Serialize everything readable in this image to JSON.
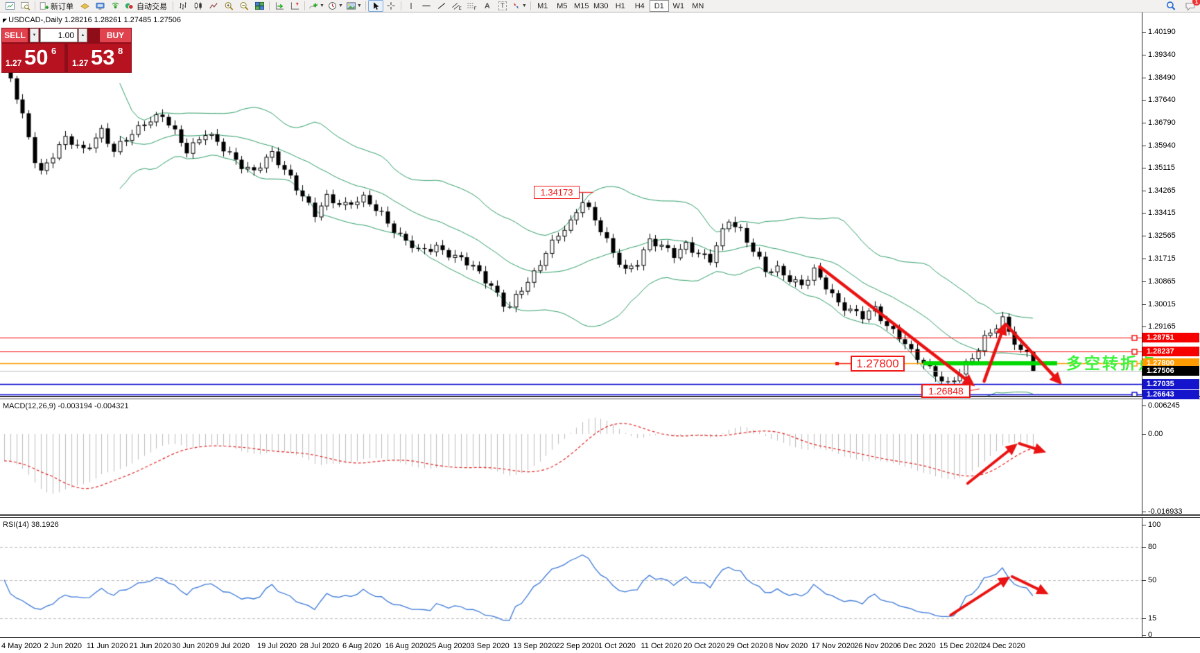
{
  "toolbar": {
    "new_order_label": "新订单",
    "autotrading_label": "自动交易",
    "timeframes": [
      "M1",
      "M5",
      "M15",
      "M30",
      "H1",
      "H4",
      "D1",
      "W1",
      "MN"
    ],
    "active_timeframe": "D1",
    "notification_badge": "1"
  },
  "symbol_line": "USDCAD-,Daily  1.28216 1.28261 1.27485 1.27506",
  "one_click": {
    "sell_label": "SELL",
    "buy_label": "BUY",
    "volume": "1.00",
    "bid": {
      "small": "1.27",
      "big": "50",
      "sup": "6"
    },
    "ask": {
      "small": "1.27",
      "big": "53",
      "sup": "8"
    }
  },
  "chart_data": {
    "type": "candlestick",
    "symbol": "USDCAD",
    "timeframe": "Daily",
    "current_bar": {
      "open": 1.28216,
      "high": 1.28261,
      "low": 1.27485,
      "close": 1.27506
    },
    "bars_total": 170,
    "ylim": [
      1.263,
      1.4045
    ],
    "y_ticks": [
      "1.40190",
      "1.39340",
      "1.38490",
      "1.37640",
      "1.36790",
      "1.35940",
      "1.35115",
      "1.34265",
      "1.33415",
      "1.32565",
      "1.31715",
      "1.30865",
      "1.30015",
      "1.29165"
    ],
    "x_labels": [
      "4 May 2020",
      "2 Jun 2020",
      "11 Jun 2020",
      "21 Jun 2020",
      "30 Jun 2020",
      "9 Jul 2020",
      "19 Jul 2020",
      "28 Jul 2020",
      "6 Aug 2020",
      "16 Aug 2020",
      "25 Aug 2020",
      "3 Sep 2020",
      "13 Sep 2020",
      "22 Sep 2020",
      "1 Oct 2020",
      "11 Oct 2020",
      "20 Oct 2020",
      "29 Oct 2020",
      "8 Nov 2020",
      "17 Nov 2020",
      "26 Nov 2020",
      "6 Dec 2020",
      "15 Dec 2020",
      "24 Dec 2020"
    ],
    "price_levels": [
      {
        "price": 1.28751,
        "label": "1.28751",
        "color": "#f60000",
        "badge_bg": "#f60000",
        "lw": 1,
        "marker": true
      },
      {
        "price": 1.28237,
        "label": "1.28237",
        "color": "#f60000",
        "badge_bg": "#f60000",
        "lw": 1,
        "marker": true
      },
      {
        "price": 1.278,
        "label": "1.27800",
        "color": "#ff9b00",
        "badge_bg": "#ff9b00",
        "lw": 1.6,
        "marker": true
      },
      {
        "price": 1.27506,
        "label": "1.27506",
        "color": "#c0c0c0",
        "badge_bg": "#000000",
        "lw": 1,
        "marker": false
      },
      {
        "price": 1.27035,
        "label": "1.27035",
        "color": "#0000cd",
        "badge_bg": "#1414cd",
        "lw": 1.6,
        "marker": false
      },
      {
        "price": 1.26643,
        "label": "1.26643",
        "color": "#0000cd",
        "badge_bg": "#1414cd",
        "lw": 1.6,
        "marker": true
      }
    ],
    "bollinger": {
      "period": 20,
      "deviation": 2,
      "color": "#2f9e68"
    },
    "price_path": [
      [
        0,
        1.3875
      ],
      [
        1,
        1.384
      ],
      [
        3,
        1.37
      ],
      [
        5,
        1.3545
      ],
      [
        6,
        1.35
      ],
      [
        8,
        1.356
      ],
      [
        10,
        1.3615
      ],
      [
        13,
        1.358
      ],
      [
        16,
        1.365
      ],
      [
        18,
        1.3565
      ],
      [
        20,
        1.362
      ],
      [
        23,
        1.3685
      ],
      [
        26,
        1.37
      ],
      [
        28,
        1.364
      ],
      [
        30,
        1.358
      ],
      [
        33,
        1.364
      ],
      [
        36,
        1.358
      ],
      [
        39,
        1.3525
      ],
      [
        41,
        1.3495
      ],
      [
        44,
        1.356
      ],
      [
        47,
        1.348
      ],
      [
        50,
        1.3365
      ],
      [
        51,
        1.333
      ],
      [
        53,
        1.34
      ],
      [
        56,
        1.3375
      ],
      [
        59,
        1.339
      ],
      [
        62,
        1.334
      ],
      [
        65,
        1.3255
      ],
      [
        68,
        1.3195
      ],
      [
        71,
        1.322
      ],
      [
        74,
        1.3175
      ],
      [
        77,
        1.314
      ],
      [
        80,
        1.3075
      ],
      [
        82,
        1.3
      ],
      [
        83,
        1.2985
      ],
      [
        85,
        1.3055
      ],
      [
        87,
        1.312
      ],
      [
        89,
        1.32
      ],
      [
        91,
        1.3255
      ],
      [
        93,
        1.33
      ],
      [
        95,
        1.3395
      ],
      [
        96,
        1.336
      ],
      [
        98,
        1.328
      ],
      [
        100,
        1.3185
      ],
      [
        102,
        1.3125
      ],
      [
        104,
        1.3165
      ],
      [
        106,
        1.324
      ],
      [
        108,
        1.321
      ],
      [
        110,
        1.3185
      ],
      [
        112,
        1.323
      ],
      [
        114,
        1.319
      ],
      [
        116,
        1.316
      ],
      [
        118,
        1.327
      ],
      [
        119,
        1.332
      ],
      [
        121,
        1.328
      ],
      [
        123,
        1.32
      ],
      [
        125,
        1.312
      ],
      [
        127,
        1.3135
      ],
      [
        129,
        1.31
      ],
      [
        131,
        1.307
      ],
      [
        133,
        1.312
      ],
      [
        135,
        1.307
      ],
      [
        137,
        1.301
      ],
      [
        139,
        1.2975
      ],
      [
        141,
        1.295
      ],
      [
        143,
        1.2985
      ],
      [
        145,
        1.2925
      ],
      [
        147,
        1.288
      ],
      [
        149,
        1.2815
      ],
      [
        151,
        1.278
      ],
      [
        153,
        1.2745
      ],
      [
        155,
        1.27
      ],
      [
        156,
        1.2715
      ],
      [
        157,
        1.274
      ],
      [
        159,
        1.28
      ],
      [
        161,
        1.288
      ],
      [
        163,
        1.292
      ],
      [
        164,
        1.294
      ],
      [
        165,
        1.289
      ],
      [
        166,
        1.2855
      ],
      [
        167,
        1.282
      ],
      [
        168,
        1.28216
      ],
      [
        169,
        1.27506
      ]
    ],
    "candle_overrides": {
      "95": {
        "high": 1.34173
      },
      "155": {
        "low": 1.26848
      },
      "169": {
        "open": 1.28216,
        "high": 1.28261,
        "low": 1.27485,
        "close": 1.27506
      }
    },
    "annotations": {
      "high_label": "1.34173",
      "support_label": "1.27800",
      "low_label": "1.26848",
      "turning_point_label": "多空转折点",
      "turning_point_color": "#3cf43c",
      "support_bar": {
        "price": 1.278,
        "from_bar": 151,
        "to_bar": 173,
        "color": "#00d900"
      },
      "arrow_color": "#ea1212",
      "trend_arrows": [
        {
          "from": [
            134,
            1.3141
          ],
          "to": [
            159.5,
            1.2694
          ]
        },
        {
          "from": [
            161,
            1.2713
          ],
          "to": [
            164.5,
            1.2933
          ]
        },
        {
          "from": [
            164.6,
            1.2925
          ],
          "to": [
            173.8,
            1.27
          ]
        }
      ]
    }
  },
  "macd_panel": {
    "label_text": "MACD(12,26,9) -0.003194 -0.004321",
    "params": {
      "fast": 12,
      "slow": 26,
      "signal": 9
    },
    "value_main": -0.003194,
    "value_signal": -0.004321,
    "scale_labels": [
      "0.006245",
      "0.00",
      "-0.016933"
    ],
    "scale": {
      "max": 0.006245,
      "min": -0.016933
    },
    "colors": {
      "histogram": "#bdbdbd",
      "signal": "#e22222"
    },
    "arrows": [
      {
        "from": [
          158.3,
          -0.0108
        ],
        "to": [
          166.5,
          -0.0021
        ]
      },
      {
        "from": [
          166.8,
          -0.0021
        ],
        "to": [
          171.2,
          -0.004
        ]
      }
    ]
  },
  "rsi_panel": {
    "label_text": "RSI(14) 38.1926",
    "period": 14,
    "value": 38.1926,
    "scale_labels": [
      "100",
      "80",
      "50",
      "15",
      "0"
    ],
    "levels": [
      80,
      50,
      15
    ],
    "color": "#3b78d8",
    "arrows": [
      {
        "from": [
          155.5,
          18
        ],
        "to": [
          165.3,
          53
        ]
      },
      {
        "from": [
          165.6,
          53
        ],
        "to": [
          171.6,
          37
        ]
      }
    ]
  }
}
